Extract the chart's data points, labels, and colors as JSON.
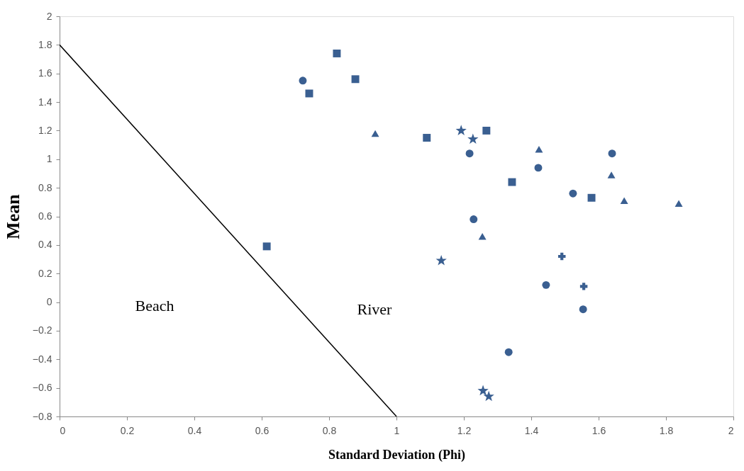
{
  "chart_data": {
    "type": "scatter",
    "xlabel": "Standard Deviation (Phi)",
    "ylabel": "Mean",
    "xlim": [
      0,
      2
    ],
    "xticks": [
      0,
      0.2,
      0.4,
      0.6,
      0.8,
      1,
      1.2,
      1.4,
      1.6,
      1.8,
      2
    ],
    "ylim": [
      -0.8,
      2
    ],
    "yticks": [
      -0.8,
      -0.6,
      -0.4,
      -0.2,
      0,
      0.2,
      0.4,
      0.6,
      0.8,
      1,
      1.2,
      1.4,
      1.6,
      1.8,
      2
    ],
    "grid": false,
    "legend": false,
    "series": [
      {
        "marker": "square",
        "color": "#3a5f91",
        "x": [
          0.823,
          0.878,
          0.741,
          1.267,
          1.09,
          0.615,
          1.579
        ],
        "values": [
          1.74,
          1.56,
          1.46,
          1.2,
          1.15,
          0.39,
          0.73
        ]
      },
      {
        "marker": "square",
        "color": "#3a5f91",
        "x": [
          1.343
        ],
        "values": [
          0.84
        ]
      },
      {
        "marker": "circle",
        "color": "#3a5f91",
        "x": [
          0.722,
          1.64,
          1.229,
          1.444,
          1.554,
          1.333
        ],
        "values": [
          1.55,
          1.04,
          0.58,
          0.12,
          -0.05,
          -0.35
        ]
      },
      {
        "marker": "circle",
        "color": "#3a5f91",
        "x": [
          1.217,
          1.421,
          1.524
        ],
        "values": [
          1.04,
          0.94,
          0.76
        ]
      },
      {
        "marker": "triangle",
        "color": "#3a5f91",
        "x": [
          0.937,
          1.423,
          1.638,
          1.676,
          1.838,
          1.255
        ],
        "values": [
          1.18,
          1.07,
          0.89,
          0.71,
          0.69,
          0.46
        ]
      },
      {
        "marker": "star",
        "color": "#3a5f91",
        "x": [
          1.192,
          1.227,
          1.133,
          1.257,
          1.274
        ],
        "values": [
          1.2,
          1.14,
          0.29,
          -0.62,
          -0.66
        ]
      },
      {
        "marker": "cross",
        "color": "#3a5f91",
        "x": [
          1.491,
          1.556
        ],
        "values": [
          0.32,
          0.11
        ]
      },
      {
        "type": "line",
        "color": "#000000",
        "x": [
          0,
          1
        ],
        "values": [
          1.8,
          -0.8
        ]
      }
    ],
    "annotations": [
      "Beach",
      "River"
    ]
  }
}
